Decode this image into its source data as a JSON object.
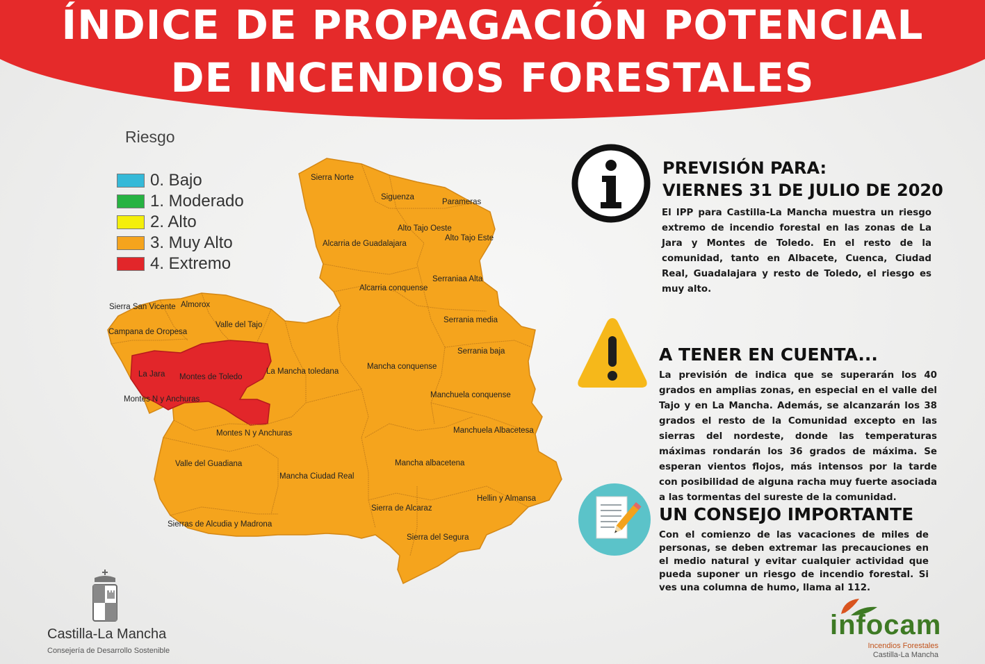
{
  "header": {
    "title_line1": "ÍNDICE DE PROPAGACIÓN POTENCIAL",
    "title_line2": "DE INCENDIOS FORESTALES"
  },
  "legend": {
    "title": "Riesgo",
    "items": [
      {
        "label": "0. Bajo",
        "color": "#35b9d8"
      },
      {
        "label": "1. Moderado",
        "color": "#27b342"
      },
      {
        "label": "2. Alto",
        "color": "#f4ef0b"
      },
      {
        "label": "3. Muy Alto",
        "color": "#f5a41d"
      },
      {
        "label": "4. Extremo",
        "color": "#e2262a"
      }
    ]
  },
  "map": {
    "risk_fill": {
      "muy_alto": "#f5a41d",
      "extremo": "#e2262a"
    },
    "zones": [
      {
        "name": "Sierra Norte",
        "risk": "3. Muy Alto"
      },
      {
        "name": "Siguenza",
        "risk": "3. Muy Alto"
      },
      {
        "name": "Parameras",
        "risk": "3. Muy Alto"
      },
      {
        "name": "Alto Tajo Oeste",
        "risk": "3. Muy Alto"
      },
      {
        "name": "Alcarria de Guadalajara",
        "risk": "3. Muy Alto"
      },
      {
        "name": "Alto Tajo Este",
        "risk": "3. Muy Alto"
      },
      {
        "name": "Serraniaa Alta",
        "risk": "3. Muy Alto"
      },
      {
        "name": "Alcarria conquense",
        "risk": "3. Muy Alto"
      },
      {
        "name": "Sierra San Vicente",
        "risk": "3. Muy Alto"
      },
      {
        "name": "Almorox",
        "risk": "3. Muy Alto"
      },
      {
        "name": "Valle del Tajo",
        "risk": "3. Muy Alto"
      },
      {
        "name": "Serrania media",
        "risk": "3. Muy Alto"
      },
      {
        "name": "Campana de Oropesa",
        "risk": "3. Muy Alto"
      },
      {
        "name": "Serrania baja",
        "risk": "3. Muy Alto"
      },
      {
        "name": "La Mancha toledana",
        "risk": "3. Muy Alto"
      },
      {
        "name": "Mancha conquense",
        "risk": "3. Muy Alto"
      },
      {
        "name": "La Jara",
        "risk": "4. Extremo"
      },
      {
        "name": "Montes de Toledo",
        "risk": "4. Extremo"
      },
      {
        "name": "Montes N y Anchuras",
        "risk": "3. Muy Alto"
      },
      {
        "name": "Manchuela conquense",
        "risk": "3. Muy Alto"
      },
      {
        "name": "Montes N y Anchuras",
        "risk": "3. Muy Alto"
      },
      {
        "name": "Manchuela Albacetesa",
        "risk": "3. Muy Alto"
      },
      {
        "name": "Valle del Guadiana",
        "risk": "3. Muy Alto"
      },
      {
        "name": "Mancha albacetena",
        "risk": "3. Muy Alto"
      },
      {
        "name": "Mancha Ciudad Real",
        "risk": "3. Muy Alto"
      },
      {
        "name": "Hellin y Almansa",
        "risk": "3. Muy Alto"
      },
      {
        "name": "Sierra de Alcaraz",
        "risk": "3. Muy Alto"
      },
      {
        "name": "Sierras de Alcudia y Madrona",
        "risk": "3. Muy Alto"
      },
      {
        "name": "Sierra del Segura",
        "risk": "3. Muy Alto"
      }
    ]
  },
  "info": {
    "icon": "info-icon",
    "heading1": "PREVISIÓN PARA:",
    "heading2": "VIERNES 31  DE JULIO DE 2020",
    "text": "El IPP para Castilla-La Mancha muestra un riesgo extremo de incendio forestal en las zonas de La Jara y Montes de Toledo. En el resto de la comunidad, tanto en Albacete, Cuenca, Ciudad Real, Guadalajara y resto de Toledo, el riesgo es muy alto."
  },
  "warning": {
    "icon": "warning-icon",
    "heading": "A TENER EN CUENTA...",
    "text": "La previsión de indica que se superarán los 40 grados en amplias zonas, en especial en el valle del Tajo y en La Mancha. Además, se alcanzarán los 38 grados el resto de la Comunidad excepto en las sierras del nordeste, donde las temperaturas máximas rondarán los 36 grados de máxima. Se esperan vientos flojos, más intensos por la tarde con posibilidad de alguna racha muy fuerte asociada a las tormentas del sureste de la comunidad."
  },
  "advice": {
    "icon": "document-pencil-icon",
    "heading": "UN CONSEJO IMPORTANTE",
    "text": "Con el comienzo de las vacaciones de miles de personas, se deben extremar las precauciones en el medio natural y evitar cualquier actividad que pueda suponer un riesgo de incendio forestal. Si ves una columna de humo, llama al 112."
  },
  "footer": {
    "clm_name": "Castilla-La Mancha",
    "clm_sub": "Consejería de Desarrollo Sostenible",
    "infocam_name": "infocam",
    "infocam_sub1": "Incendios Forestales",
    "infocam_sub2": "Castilla-La Mancha"
  }
}
